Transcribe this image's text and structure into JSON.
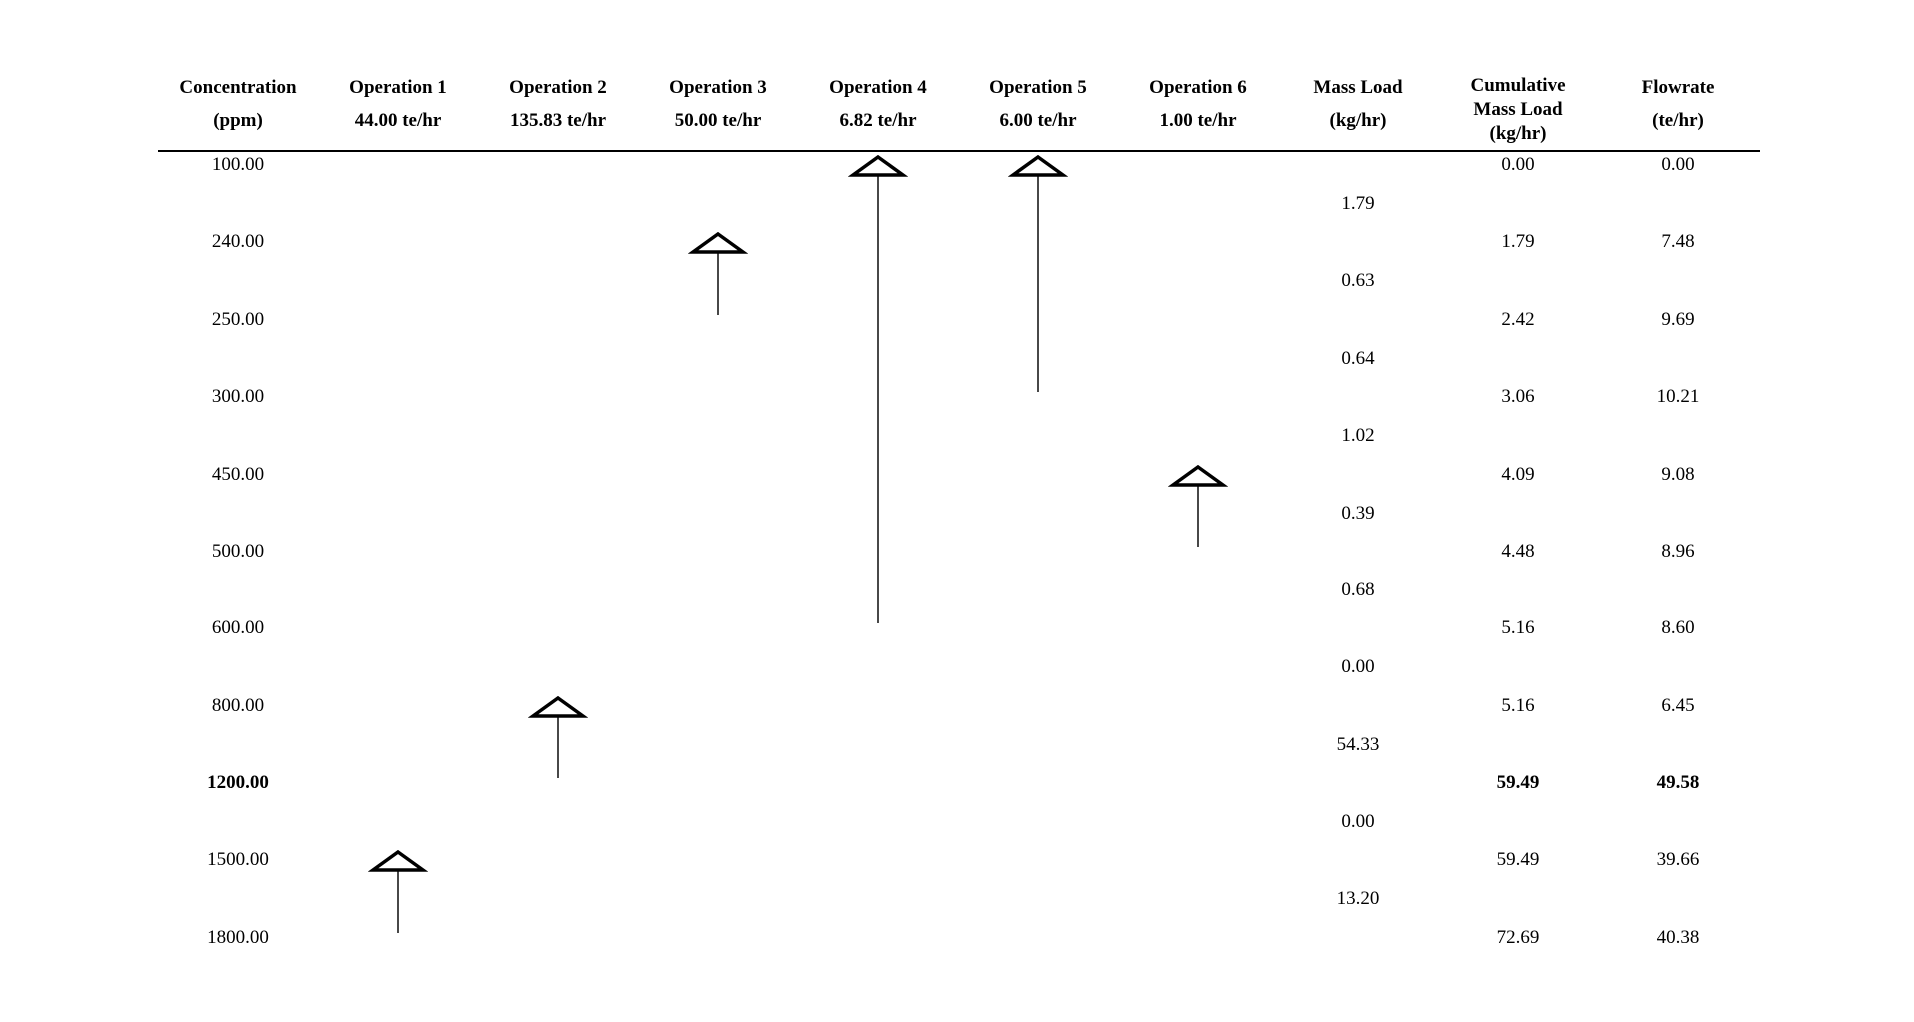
{
  "page": {
    "background": "#ffffff",
    "text_color": "#000000"
  },
  "header": {
    "columns": [
      {
        "id": "concentration",
        "lines": [
          "Concentration",
          "(ppm)"
        ]
      },
      {
        "id": "operation-1",
        "lines": [
          "Operation 1",
          "44.00 te/hr"
        ]
      },
      {
        "id": "operation-2",
        "lines": [
          "Operation 2",
          "135.83 te/hr"
        ]
      },
      {
        "id": "operation-3",
        "lines": [
          "Operation 3",
          "50.00 te/hr"
        ]
      },
      {
        "id": "operation-4",
        "lines": [
          "Operation 4",
          "6.82 te/hr"
        ]
      },
      {
        "id": "operation-5",
        "lines": [
          "Operation 5",
          "6.00 te/hr"
        ]
      },
      {
        "id": "operation-6",
        "lines": [
          "Operation 6",
          "1.00 te/hr"
        ]
      },
      {
        "id": "mass-load",
        "lines": [
          "Mass Load",
          "(kg/hr)"
        ]
      },
      {
        "id": "cumulative-mass-load",
        "lines": [
          "Cumulative",
          "Mass Load",
          "(kg/hr)"
        ]
      },
      {
        "id": "flowrate",
        "lines": [
          "Flowrate",
          "(te/hr)"
        ]
      }
    ]
  },
  "rows": [
    {
      "concentration": "100.00",
      "cumulative_mass_load": "0.00",
      "flowrate": "0.00",
      "bold": false
    },
    {
      "concentration": "240.00",
      "cumulative_mass_load": "1.79",
      "flowrate": "7.48",
      "bold": false
    },
    {
      "concentration": "250.00",
      "cumulative_mass_load": "2.42",
      "flowrate": "9.69",
      "bold": false
    },
    {
      "concentration": "300.00",
      "cumulative_mass_load": "3.06",
      "flowrate": "10.21",
      "bold": false
    },
    {
      "concentration": "450.00",
      "cumulative_mass_load": "4.09",
      "flowrate": "9.08",
      "bold": false
    },
    {
      "concentration": "500.00",
      "cumulative_mass_load": "4.48",
      "flowrate": "8.96",
      "bold": false
    },
    {
      "concentration": "600.00",
      "cumulative_mass_load": "5.16",
      "flowrate": "8.60",
      "bold": false
    },
    {
      "concentration": "800.00",
      "cumulative_mass_load": "5.16",
      "flowrate": "6.45",
      "bold": false
    },
    {
      "concentration": "1200.00",
      "cumulative_mass_load": "59.49",
      "flowrate": "49.58",
      "bold": true
    },
    {
      "concentration": "1500.00",
      "cumulative_mass_load": "59.49",
      "flowrate": "39.66",
      "bold": false
    },
    {
      "concentration": "1800.00",
      "cumulative_mass_load": "72.69",
      "flowrate": "40.38",
      "bold": false
    }
  ],
  "interval_mass_loads": [
    "1.79",
    "0.63",
    "0.64",
    "1.02",
    "0.39",
    "0.68",
    "0.00",
    "54.33",
    "0.00",
    "13.20"
  ],
  "operations": [
    {
      "name": "Operation 1",
      "flowrate": "44.00 te/hr",
      "column": 1,
      "head_ppm": "1500.00",
      "tail_ppm": "1800.00",
      "head_row": 9,
      "tail_row": 10
    },
    {
      "name": "Operation 2",
      "flowrate": "135.83 te/hr",
      "column": 2,
      "head_ppm": "800.00",
      "tail_ppm": "1200.00",
      "head_row": 7,
      "tail_row": 8
    },
    {
      "name": "Operation 3",
      "flowrate": "50.00 te/hr",
      "column": 3,
      "head_ppm": "240.00",
      "tail_ppm": "250.00",
      "head_row": 1,
      "tail_row": 2
    },
    {
      "name": "Operation 4",
      "flowrate": "6.82 te/hr",
      "column": 4,
      "head_ppm": "100.00",
      "tail_ppm": "600.00",
      "head_row": 0,
      "tail_row": 6
    },
    {
      "name": "Operation 5",
      "flowrate": "6.00 te/hr",
      "column": 5,
      "head_ppm": "100.00",
      "tail_ppm": "300.00",
      "head_row": 0,
      "tail_row": 3
    },
    {
      "name": "Operation 6",
      "flowrate": "1.00 te/hr",
      "column": 6,
      "head_ppm": "450.00",
      "tail_ppm": "500.00",
      "head_row": 4,
      "tail_row": 5
    }
  ],
  "chart_data": {
    "type": "table",
    "title": "Concentration interval diagram",
    "columns": [
      "Concentration (ppm)",
      "Mass Load (kg/hr)",
      "Cumulative Mass Load (kg/hr)",
      "Flowrate (te/hr)"
    ],
    "concentrations": [
      100.0,
      240.0,
      250.0,
      300.0,
      450.0,
      500.0,
      600.0,
      800.0,
      1200.0,
      1500.0,
      1800.0
    ],
    "interval_mass_loads": [
      1.79,
      0.63,
      0.64,
      1.02,
      0.39,
      0.68,
      0.0,
      54.33,
      0.0,
      13.2
    ],
    "cumulative_mass_loads": [
      0.0,
      1.79,
      2.42,
      3.06,
      4.09,
      4.48,
      5.16,
      5.16,
      59.49,
      59.49,
      72.69
    ],
    "flowrates": [
      0.0,
      7.48,
      9.69,
      10.21,
      9.08,
      8.96,
      8.6,
      6.45,
      49.58,
      39.66,
      40.38
    ],
    "pinch_row_ppm": 1200.0,
    "operations": [
      {
        "name": "Operation 1",
        "flow_te_hr": 44.0,
        "from_ppm": 1800,
        "to_ppm": 1500
      },
      {
        "name": "Operation 2",
        "flow_te_hr": 135.83,
        "from_ppm": 1200,
        "to_ppm": 800
      },
      {
        "name": "Operation 3",
        "flow_te_hr": 50.0,
        "from_ppm": 250,
        "to_ppm": 240
      },
      {
        "name": "Operation 4",
        "flow_te_hr": 6.82,
        "from_ppm": 600,
        "to_ppm": 100
      },
      {
        "name": "Operation 5",
        "flow_te_hr": 6.0,
        "from_ppm": 300,
        "to_ppm": 100
      },
      {
        "name": "Operation 6",
        "flow_te_hr": 1.0,
        "from_ppm": 500,
        "to_ppm": 450
      }
    ]
  }
}
